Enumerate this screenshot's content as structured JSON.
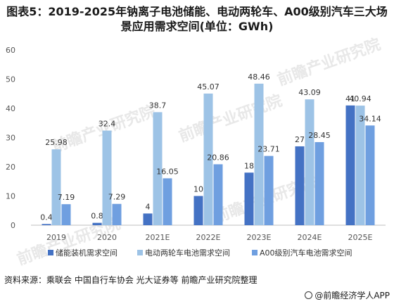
{
  "header": {
    "title": "图表5：2019-2025年钠离子电池储能、电动两轮车、A00级别汽车三大场景应用需求空间(单位：GWh)"
  },
  "footer": {
    "source": "资料来源：乘联会 中国自行车协会 光大证券等 前瞻产业研究院整理",
    "brand": "@前瞻经济学人APP"
  },
  "watermark": {
    "text": "前瞻产业研究院"
  },
  "chart_data": {
    "type": "bar",
    "categories": [
      "2019",
      "2020",
      "2021E",
      "2022E",
      "2023E",
      "2024E",
      "2025E"
    ],
    "series": [
      {
        "name": "储能装机需求空间",
        "values": [
          0.4,
          0.8,
          4,
          10,
          18,
          27,
          41
        ],
        "color": "#4472c4"
      },
      {
        "name": "电动两轮车电池需求空间",
        "values": [
          25.98,
          32.4,
          38.7,
          45.07,
          48.46,
          43.09,
          40.94
        ],
        "color": "#9dc3e6"
      },
      {
        "name": "A00级别汽车电池需求空间",
        "values": [
          7.19,
          7.29,
          16.05,
          20.86,
          23.71,
          28.45,
          34.14
        ],
        "color": "#6f9fe0"
      }
    ],
    "yticks": [
      0,
      10,
      20,
      30,
      40,
      50,
      60
    ],
    "ylim": [
      0,
      60
    ],
    "grid": false,
    "legend": "bottom"
  }
}
